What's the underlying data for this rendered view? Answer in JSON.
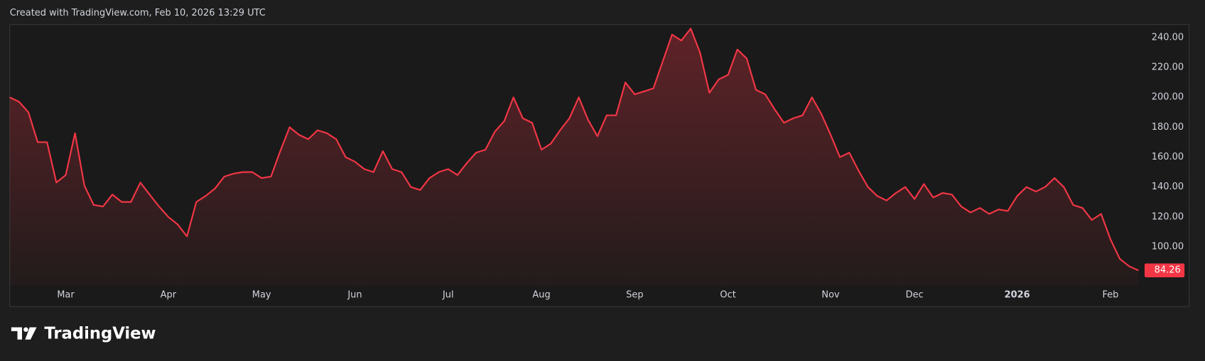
{
  "header": "Created with TradingView.com, Feb 10, 2026 13:29 UTC",
  "footer": "TradingView",
  "chart_data": {
    "type": "area",
    "color": "#f23645",
    "grid": false,
    "ylim": [
      74.4,
      248.7
    ],
    "yticks": [
      {
        "value": 100,
        "label": "100.00"
      },
      {
        "value": 120,
        "label": "120.00"
      },
      {
        "value": 140,
        "label": "140.00"
      },
      {
        "value": 160,
        "label": "160.00"
      },
      {
        "value": 180,
        "label": "180.00"
      },
      {
        "value": 200,
        "label": "200.00"
      },
      {
        "value": 220,
        "label": "220.00"
      },
      {
        "value": 240,
        "label": "240.00"
      }
    ],
    "categories": [
      null,
      null,
      null,
      null,
      null,
      null,
      "Mar",
      null,
      null,
      null,
      null,
      null,
      null,
      null,
      null,
      null,
      null,
      "Apr",
      null,
      null,
      null,
      null,
      null,
      null,
      null,
      null,
      null,
      "May",
      null,
      null,
      null,
      null,
      null,
      null,
      null,
      null,
      null,
      "Jun",
      null,
      null,
      null,
      null,
      null,
      null,
      null,
      null,
      null,
      "Jul",
      null,
      null,
      null,
      null,
      null,
      null,
      null,
      null,
      null,
      "Aug",
      null,
      null,
      null,
      null,
      null,
      null,
      null,
      null,
      null,
      "Sep",
      null,
      null,
      null,
      null,
      null,
      null,
      null,
      null,
      null,
      "Oct",
      null,
      null,
      null,
      null,
      null,
      null,
      null,
      null,
      null,
      null,
      "Nov",
      null,
      null,
      null,
      null,
      null,
      null,
      null,
      null,
      "Dec",
      null,
      null,
      null,
      null,
      null,
      null,
      null,
      null,
      null,
      null,
      "2026",
      null,
      null,
      null,
      null,
      null,
      null,
      null,
      null,
      null,
      "Feb",
      null,
      null,
      null
    ],
    "values": [
      200,
      197,
      190,
      170,
      170,
      143,
      148,
      176,
      141,
      128,
      127,
      135,
      130,
      130,
      143,
      135,
      127,
      120,
      115,
      107,
      130,
      134,
      139,
      147,
      149,
      150,
      150,
      146,
      147,
      164,
      180,
      175,
      172,
      178,
      176,
      172,
      160,
      157,
      152,
      150,
      164,
      152,
      150,
      140,
      138,
      146,
      150,
      152,
      148,
      156,
      163,
      165,
      177,
      184,
      200,
      186,
      183,
      165,
      169,
      178,
      186,
      200,
      185,
      174,
      188,
      188,
      210,
      202,
      204,
      206,
      224,
      242,
      238,
      246,
      230,
      203,
      212,
      215,
      232,
      226,
      205,
      202,
      192,
      183,
      186,
      188,
      200,
      189,
      175,
      160,
      163,
      151,
      140,
      134,
      131,
      136,
      140,
      132,
      142,
      133,
      136,
      135,
      127,
      123,
      126,
      122,
      125,
      124,
      134,
      140,
      137,
      140,
      146,
      140,
      128,
      126,
      118,
      122,
      105,
      92,
      87,
      84.26
    ]
  }
}
